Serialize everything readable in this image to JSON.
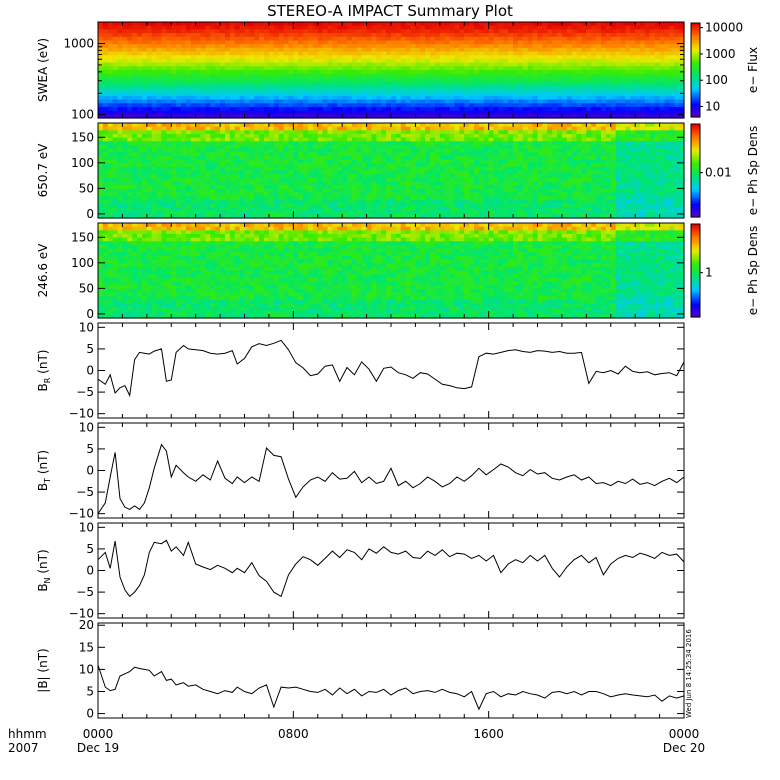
{
  "title": "STEREO-A IMPACT Summary Plot",
  "timestamp": "Wed Jun 8 14:25:34 2016",
  "x_axis": {
    "label_top": "hhmm",
    "label_bottom": "2007",
    "ticks": [
      {
        "time": "0000",
        "date": "Dec 19",
        "hour": 0
      },
      {
        "time": "0800",
        "date": "",
        "hour": 8
      },
      {
        "time": "1600",
        "date": "",
        "hour": 16
      },
      {
        "time": "0000",
        "date": "Dec 20",
        "hour": 24
      }
    ]
  },
  "colors": {
    "line": "#000000",
    "frame": "#000000",
    "background": "#ffffff"
  },
  "chart_data": [
    {
      "type": "heatmap",
      "ylabel": "SWEA (eV)",
      "ylog": true,
      "ylim": [
        90,
        2000
      ],
      "yticks": [
        {
          "v": 100,
          "label": "100"
        },
        {
          "v": 1000,
          "label": "1000"
        }
      ],
      "colorbar": {
        "label": "e− Flux",
        "log": true,
        "range": [
          4,
          15000
        ],
        "ticks": [
          {
            "v": 10,
            "label": "10"
          },
          {
            "v": 100,
            "label": "100"
          },
          {
            "v": 1000,
            "label": "1000"
          },
          {
            "v": 10000,
            "label": "10000"
          }
        ]
      },
      "x": [
        0,
        24
      ]
    },
    {
      "type": "heatmap",
      "ylabel": "650.7 eV",
      "ylim": [
        -8,
        178
      ],
      "yticks": [
        {
          "v": 0,
          "label": "0"
        },
        {
          "v": 50,
          "label": "50"
        },
        {
          "v": 100,
          "label": "100"
        },
        {
          "v": 150,
          "label": "150"
        }
      ],
      "colorbar": {
        "label": "e− Ph Sp Dens",
        "log": true,
        "range": [
          0.0015,
          0.08
        ],
        "ticks": [
          {
            "v": 0.01,
            "label": "0.01"
          }
        ]
      },
      "x": [
        0,
        24
      ]
    },
    {
      "type": "heatmap",
      "ylabel": "246.6 eV",
      "ylim": [
        -8,
        178
      ],
      "yticks": [
        {
          "v": 0,
          "label": "0"
        },
        {
          "v": 50,
          "label": "50"
        },
        {
          "v": 100,
          "label": "100"
        },
        {
          "v": 150,
          "label": "150"
        }
      ],
      "colorbar": {
        "label": "e− Ph Sp Dens",
        "log": true,
        "range": [
          0.15,
          8
        ],
        "ticks": [
          {
            "v": 1,
            "label": "1"
          }
        ]
      },
      "x": [
        0,
        24
      ]
    },
    {
      "type": "line",
      "ylabel": "B_R (nT)",
      "ylabel_main": "B",
      "ylabel_sub": "R",
      "ylabel_unit": " (nT)",
      "ylim": [
        -11,
        11
      ],
      "yticks": [
        {
          "v": -10,
          "label": "−10"
        },
        {
          "v": -5,
          "label": "−5"
        },
        {
          "v": 0,
          "label": "0"
        },
        {
          "v": 5,
          "label": "5"
        },
        {
          "v": 10,
          "label": "10"
        }
      ],
      "x": [
        0,
        0.3,
        0.5,
        0.7,
        0.9,
        1.1,
        1.3,
        1.5,
        1.7,
        1.9,
        2.1,
        2.3,
        2.6,
        2.8,
        3.0,
        3.2,
        3.5,
        3.7,
        4.0,
        4.3,
        4.6,
        4.9,
        5.2,
        5.5,
        5.7,
        6.0,
        6.3,
        6.6,
        6.9,
        7.2,
        7.5,
        7.8,
        8.1,
        8.4,
        8.7,
        9.0,
        9.3,
        9.6,
        9.9,
        10.2,
        10.5,
        10.8,
        11.1,
        11.4,
        11.7,
        12.0,
        12.3,
        12.6,
        12.9,
        13.2,
        13.5,
        13.8,
        14.1,
        14.4,
        14.7,
        15.0,
        15.3,
        15.6,
        15.9,
        16.2,
        16.5,
        16.8,
        17.1,
        17.4,
        17.7,
        18.0,
        18.3,
        18.6,
        18.9,
        19.2,
        19.5,
        19.8,
        20.1,
        20.4,
        20.7,
        21.0,
        21.3,
        21.6,
        21.9,
        22.2,
        22.5,
        22.8,
        23.1,
        23.4,
        23.7,
        24.0
      ],
      "values": [
        -2,
        -3.2,
        -1,
        -5.2,
        -4,
        -3.5,
        -5.8,
        2.5,
        4.2,
        4,
        3.8,
        4.5,
        5,
        -2.5,
        -2.2,
        4.2,
        5.8,
        5,
        4.8,
        4.6,
        4,
        3.8,
        4,
        4.6,
        1.5,
        2.8,
        5.5,
        6.2,
        5.8,
        6.3,
        7,
        4.8,
        1.8,
        0.6,
        -1.2,
        -0.8,
        1,
        1.3,
        -2.5,
        0.7,
        -1,
        2,
        0.3,
        -2.5,
        0.5,
        0.8,
        -0.5,
        -1,
        -1.8,
        -0.5,
        -0.8,
        -2,
        -3.2,
        -3.5,
        -4,
        -4.2,
        -3.8,
        3.2,
        4,
        3.8,
        4.2,
        4.6,
        4.8,
        4.4,
        4.2,
        4.6,
        4.5,
        4.2,
        4.4,
        4,
        4,
        4.2,
        -3,
        -0.2,
        -0.5,
        0,
        -0.8,
        1,
        -0.2,
        -0.5,
        -0.3,
        -1,
        -0.7,
        -0.5,
        -1.2,
        2
      ]
    },
    {
      "type": "line",
      "ylabel": "B_T (nT)",
      "ylabel_main": "B",
      "ylabel_sub": "T",
      "ylabel_unit": " (nT)",
      "ylim": [
        -11,
        11
      ],
      "yticks": [
        {
          "v": -10,
          "label": "−10"
        },
        {
          "v": -5,
          "label": "−5"
        },
        {
          "v": 0,
          "label": "0"
        },
        {
          "v": 5,
          "label": "5"
        },
        {
          "v": 10,
          "label": "10"
        }
      ],
      "x": [
        0,
        0.3,
        0.5,
        0.7,
        0.9,
        1.1,
        1.3,
        1.5,
        1.7,
        1.9,
        2.1,
        2.3,
        2.6,
        2.8,
        3.0,
        3.2,
        3.5,
        3.7,
        4.0,
        4.3,
        4.6,
        4.9,
        5.2,
        5.5,
        5.7,
        6.0,
        6.3,
        6.6,
        6.9,
        7.2,
        7.5,
        7.8,
        8.1,
        8.4,
        8.7,
        9.0,
        9.3,
        9.6,
        9.9,
        10.2,
        10.5,
        10.8,
        11.1,
        11.4,
        11.7,
        12.0,
        12.3,
        12.6,
        12.9,
        13.2,
        13.5,
        13.8,
        14.1,
        14.4,
        14.7,
        15.0,
        15.3,
        15.6,
        15.9,
        16.2,
        16.5,
        16.8,
        17.1,
        17.4,
        17.7,
        18.0,
        18.3,
        18.6,
        18.9,
        19.2,
        19.5,
        19.8,
        20.1,
        20.4,
        20.7,
        21.0,
        21.3,
        21.6,
        21.9,
        22.2,
        22.5,
        22.8,
        23.1,
        23.4,
        23.7,
        24.0
      ],
      "values": [
        -10,
        -7.5,
        -1.5,
        4.2,
        -6.5,
        -8.5,
        -9,
        -8.2,
        -9,
        -7.5,
        -4,
        0.5,
        6,
        4.5,
        -1.5,
        1.2,
        -0.5,
        -1.5,
        -2.5,
        -1,
        -2.2,
        2.2,
        -1.8,
        -3,
        -1.5,
        -2.8,
        -1.5,
        -2.5,
        5.2,
        3.5,
        3.2,
        -2,
        -6.2,
        -3.8,
        -2.2,
        -1.5,
        -2.5,
        -0.5,
        -2,
        -1.8,
        -0.2,
        -2.8,
        -1.5,
        -3,
        -2.5,
        0.5,
        -3.5,
        -2.5,
        -4,
        -3,
        -1.5,
        -2.5,
        -3.8,
        -3,
        -1.5,
        -2.5,
        -1.2,
        0.5,
        -1,
        0.2,
        1.5,
        0.8,
        -0.5,
        -1.2,
        0.2,
        -0.8,
        -0.5,
        -1.8,
        -2.2,
        -1.5,
        -1,
        -2.2,
        -1.5,
        -3,
        -2.8,
        -3.5,
        -2.5,
        -3,
        -2,
        -3.2,
        -2.8,
        -3.5,
        -2.5,
        -1.8,
        -2.8,
        -1.5
      ]
    },
    {
      "type": "line",
      "ylabel": "B_N (nT)",
      "ylabel_main": "B",
      "ylabel_sub": "N",
      "ylabel_unit": " (nT)",
      "ylim": [
        -11,
        11
      ],
      "yticks": [
        {
          "v": -10,
          "label": "−10"
        },
        {
          "v": -5,
          "label": "−5"
        },
        {
          "v": 0,
          "label": "0"
        },
        {
          "v": 5,
          "label": "5"
        },
        {
          "v": 10,
          "label": "10"
        }
      ],
      "x": [
        0,
        0.3,
        0.5,
        0.7,
        0.9,
        1.1,
        1.3,
        1.5,
        1.7,
        1.9,
        2.1,
        2.3,
        2.6,
        2.8,
        3.0,
        3.2,
        3.5,
        3.7,
        4.0,
        4.3,
        4.6,
        4.9,
        5.2,
        5.5,
        5.7,
        6.0,
        6.3,
        6.6,
        6.9,
        7.2,
        7.5,
        7.8,
        8.1,
        8.4,
        8.7,
        9.0,
        9.3,
        9.6,
        9.9,
        10.2,
        10.5,
        10.8,
        11.1,
        11.4,
        11.7,
        12.0,
        12.3,
        12.6,
        12.9,
        13.2,
        13.5,
        13.8,
        14.1,
        14.4,
        14.7,
        15.0,
        15.3,
        15.6,
        15.9,
        16.2,
        16.5,
        16.8,
        17.1,
        17.4,
        17.7,
        18.0,
        18.3,
        18.6,
        18.9,
        19.2,
        19.5,
        19.8,
        20.1,
        20.4,
        20.7,
        21.0,
        21.3,
        21.6,
        21.9,
        22.2,
        22.5,
        22.8,
        23.1,
        23.4,
        23.7,
        24.0
      ],
      "values": [
        2.5,
        4.2,
        0.5,
        6.8,
        -1.5,
        -4.5,
        -6,
        -5,
        -3.5,
        -1,
        4.2,
        6.5,
        6.2,
        7,
        4.5,
        5.5,
        3.5,
        6.5,
        1.5,
        0.8,
        0.2,
        1.2,
        0.5,
        -0.5,
        0.5,
        -0.5,
        1.8,
        -1.2,
        -2.5,
        -5,
        -6,
        -1,
        1.5,
        3.2,
        2.5,
        1.2,
        2.8,
        4.5,
        3,
        4.8,
        4.2,
        2.5,
        5,
        4,
        5.5,
        4.2,
        3.8,
        4.5,
        3,
        2.8,
        4.5,
        3.5,
        4.8,
        3.2,
        4,
        3.8,
        2.8,
        3.5,
        2.2,
        3.5,
        -0.5,
        1.5,
        2.5,
        1.8,
        3.5,
        2.2,
        3.5,
        0.5,
        -1.5,
        0.8,
        2.5,
        3.5,
        1.8,
        3,
        -1,
        1.5,
        2.8,
        3.5,
        3,
        4,
        3.5,
        2.8,
        4.2,
        3.5,
        3.8,
        2
      ]
    },
    {
      "type": "line",
      "ylabel": "|B| (nT)",
      "ylim": [
        -1,
        20.5
      ],
      "yticks": [
        {
          "v": 0,
          "label": "0"
        },
        {
          "v": 5,
          "label": "5"
        },
        {
          "v": 10,
          "label": "10"
        },
        {
          "v": 15,
          "label": "15"
        },
        {
          "v": 20,
          "label": "20"
        }
      ],
      "x": [
        0,
        0.3,
        0.5,
        0.7,
        0.9,
        1.1,
        1.3,
        1.5,
        1.7,
        1.9,
        2.1,
        2.3,
        2.6,
        2.8,
        3.0,
        3.2,
        3.5,
        3.7,
        4.0,
        4.3,
        4.6,
        4.9,
        5.2,
        5.5,
        5.7,
        6.0,
        6.3,
        6.6,
        6.9,
        7.2,
        7.5,
        7.8,
        8.1,
        8.4,
        8.7,
        9.0,
        9.3,
        9.6,
        9.9,
        10.2,
        10.5,
        10.8,
        11.1,
        11.4,
        11.7,
        12.0,
        12.3,
        12.6,
        12.9,
        13.2,
        13.5,
        13.8,
        14.1,
        14.4,
        14.7,
        15.0,
        15.3,
        15.6,
        15.9,
        16.2,
        16.5,
        16.8,
        17.1,
        17.4,
        17.7,
        18.0,
        18.3,
        18.6,
        18.9,
        19.2,
        19.5,
        19.8,
        20.1,
        20.4,
        20.7,
        21.0,
        21.3,
        21.6,
        21.9,
        22.2,
        22.5,
        22.8,
        23.1,
        23.4,
        23.7,
        24.0
      ],
      "values": [
        11,
        6,
        5.2,
        5.5,
        8.5,
        9,
        9.5,
        10.5,
        10.2,
        10,
        9.8,
        8.5,
        9.5,
        7.5,
        7.8,
        6.5,
        7,
        6.2,
        6.5,
        5.5,
        5,
        4.5,
        5.2,
        4.8,
        6,
        5,
        4.5,
        5.8,
        6.5,
        1.5,
        6,
        5.8,
        6,
        5.5,
        5,
        4.8,
        5.5,
        4.2,
        5.8,
        4.5,
        5.5,
        4,
        5,
        4.8,
        5.5,
        4.2,
        5.2,
        5.8,
        4.5,
        5,
        5.2,
        4.8,
        5.5,
        4.8,
        4.5,
        3.8,
        5,
        1,
        4.5,
        5,
        3.8,
        4.5,
        4.2,
        5,
        4.5,
        4.2,
        3.5,
        4.8,
        5,
        4.5,
        5,
        4.2,
        5,
        5,
        4.5,
        3.8,
        4.2,
        4.5,
        4.2,
        4,
        3.8,
        4.2,
        2.8,
        4,
        3.5,
        4
      ]
    }
  ]
}
